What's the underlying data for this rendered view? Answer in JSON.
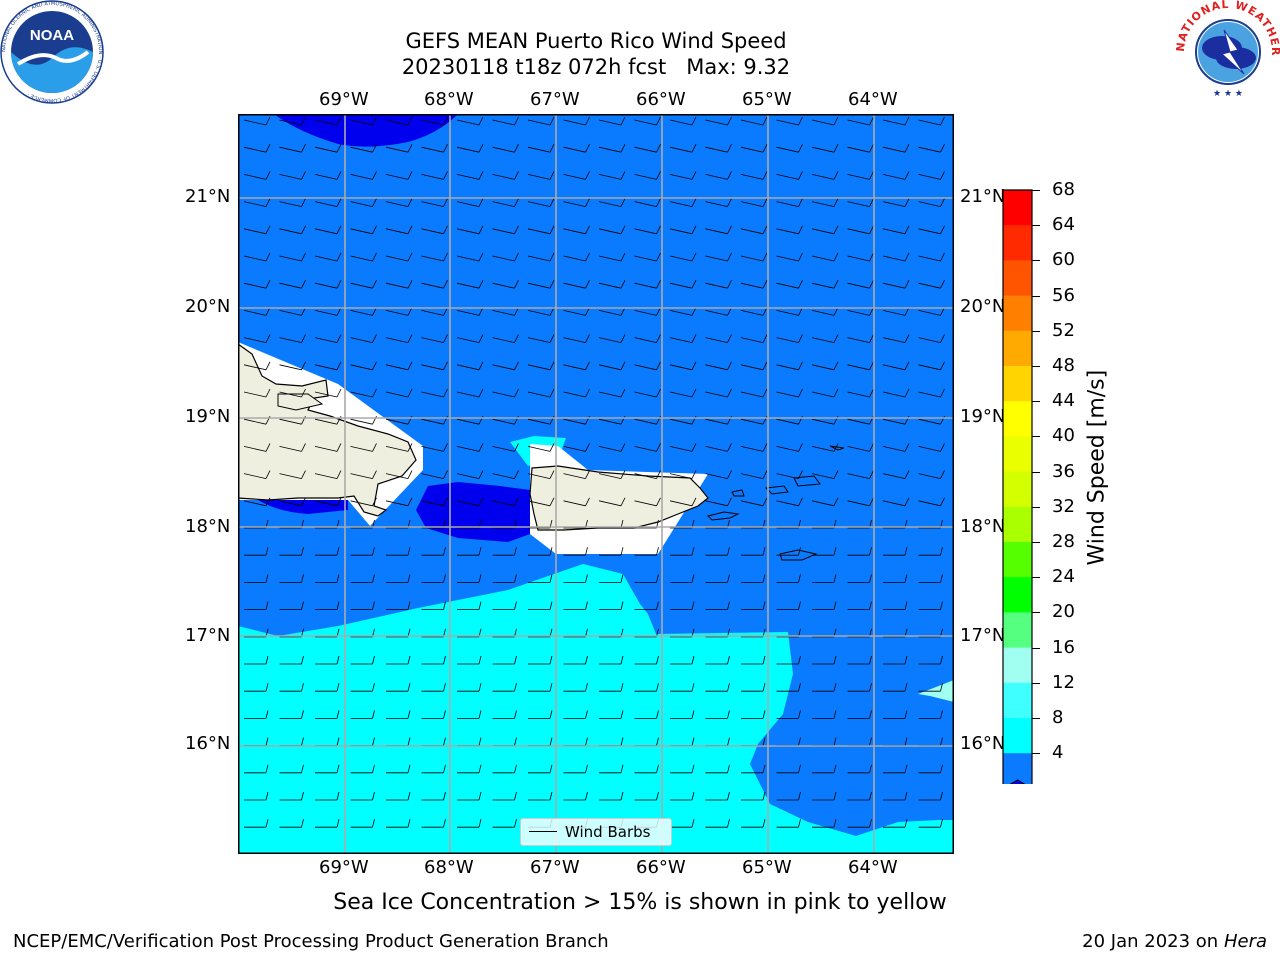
{
  "title": {
    "line1": "GEFS MEAN Puerto Rico Wind Speed",
    "line2": "20230118 t18z 072h fcst   Max: 9.32"
  },
  "map": {
    "lon_labels": [
      "69°W",
      "68°W",
      "67°W",
      "66°W",
      "65°W",
      "64°W"
    ],
    "lat_labels": [
      "21°N",
      "20°N",
      "19°N",
      "18°N",
      "17°N",
      "16°N"
    ],
    "legend_label": "Wind Barbs",
    "colors": {
      "land": "#efefdf",
      "speed_4_8": "#0a7bff",
      "speed_0_4": "#0000ee",
      "speed_8_12": "#00ffff",
      "speed_12_16": "#40ffff",
      "speed_16_20": "#a0fff0"
    }
  },
  "colorbar": {
    "title": "Wind Speed [m/s]",
    "ticks": [
      "68",
      "64",
      "60",
      "56",
      "52",
      "48",
      "44",
      "40",
      "36",
      "32",
      "28",
      "24",
      "20",
      "16",
      "12",
      "8",
      "4"
    ],
    "colors": [
      "#ff0000",
      "#ff2a00",
      "#ff5500",
      "#ff7f00",
      "#ffaa00",
      "#ffd400",
      "#ffff00",
      "#eaff00",
      "#d4ff00",
      "#aaff00",
      "#55ff00",
      "#00ff00",
      "#55ff80",
      "#a0fff0",
      "#40ffff",
      "#00ffff",
      "#0a7bff"
    ],
    "extend_color": "#0000ee"
  },
  "caption": "Sea Ice Concentration > 15% is shown in pink to yellow",
  "footer": {
    "left": "NCEP/EMC/Verification Post Processing Product Generation Branch",
    "right_prefix": "20 Jan 2023 on ",
    "right_host": "Hera"
  },
  "logos": {
    "noaa_text": "NOAA",
    "noaa_ring": "NATIONAL OCEANIC AND ATMOSPHERIC ADMINISTRATION · U.S. DEPARTMENT OF COMMERCE ·",
    "nws_ring": "NATIONAL WEATHER SERVICE"
  }
}
